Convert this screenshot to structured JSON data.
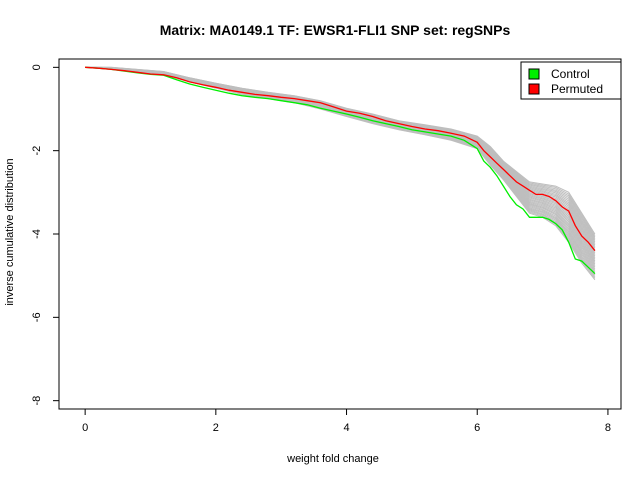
{
  "chart_data": {
    "type": "line",
    "title": "Matrix: MA0149.1 TF: EWSR1-FLI1 SNP set: regSNPs",
    "xlabel": "weight fold change",
    "ylabel": "inverse cumulative distribution",
    "xlim": [
      -0.4,
      8.2
    ],
    "ylim": [
      -8.2,
      0.2
    ],
    "x_ticks": [
      0,
      2,
      4,
      6,
      8
    ],
    "y_ticks": [
      0,
      -2,
      -4,
      -6,
      -8
    ],
    "x_tick_labels": [
      "0",
      "2",
      "4",
      "6",
      "8"
    ],
    "y_tick_labels": [
      "0",
      "-2",
      "-4",
      "-6",
      "-8"
    ],
    "legend": {
      "position": "top-right",
      "entries": [
        {
          "label": "Control",
          "color": "#00ee00"
        },
        {
          "label": "Permuted",
          "color": "#ff0000"
        }
      ]
    },
    "grid": false,
    "background_band": {
      "color": "#bebebe",
      "description_count": 30,
      "x": [
        0,
        0.4,
        0.8,
        1.2,
        1.6,
        2.0,
        2.4,
        2.8,
        3.2,
        3.6,
        4.0,
        4.4,
        4.8,
        5.2,
        5.6,
        6.0,
        6.2,
        6.4,
        6.6,
        6.8,
        7.0,
        7.2,
        7.4,
        7.6,
        7.8
      ],
      "upper": [
        0,
        0.0,
        -0.05,
        -0.1,
        -0.25,
        -0.38,
        -0.5,
        -0.6,
        -0.68,
        -0.8,
        -0.98,
        -1.12,
        -1.28,
        -1.38,
        -1.48,
        -1.65,
        -1.9,
        -2.25,
        -2.5,
        -2.75,
        -2.8,
        -2.85,
        -3.0,
        -3.5,
        -4.0
      ],
      "lower": [
        0,
        -0.05,
        -0.12,
        -0.18,
        -0.35,
        -0.5,
        -0.65,
        -0.75,
        -0.85,
        -1.0,
        -1.18,
        -1.35,
        -1.5,
        -1.62,
        -1.75,
        -1.95,
        -2.35,
        -2.7,
        -3.1,
        -3.5,
        -3.6,
        -3.8,
        -4.2,
        -4.7,
        -5.1
      ]
    },
    "series": [
      {
        "name": "Permuted",
        "color": "#ff0000",
        "x": [
          0,
          0.2,
          0.4,
          0.6,
          0.8,
          1.0,
          1.2,
          1.4,
          1.6,
          1.8,
          2.0,
          2.2,
          2.4,
          2.6,
          2.8,
          3.0,
          3.2,
          3.4,
          3.6,
          3.8,
          4.0,
          4.2,
          4.4,
          4.6,
          4.8,
          5.0,
          5.2,
          5.4,
          5.6,
          5.8,
          6.0,
          6.1,
          6.2,
          6.3,
          6.4,
          6.5,
          6.6,
          6.7,
          6.8,
          6.9,
          7.0,
          7.1,
          7.2,
          7.3,
          7.4,
          7.5,
          7.6,
          7.7,
          7.8
        ],
        "values": [
          0,
          -0.02,
          -0.05,
          -0.08,
          -0.12,
          -0.16,
          -0.18,
          -0.25,
          -0.35,
          -0.42,
          -0.48,
          -0.55,
          -0.6,
          -0.65,
          -0.68,
          -0.72,
          -0.75,
          -0.8,
          -0.85,
          -0.95,
          -1.05,
          -1.1,
          -1.18,
          -1.28,
          -1.35,
          -1.42,
          -1.48,
          -1.52,
          -1.58,
          -1.65,
          -1.8,
          -2.0,
          -2.15,
          -2.3,
          -2.45,
          -2.6,
          -2.75,
          -2.85,
          -2.95,
          -3.05,
          -3.05,
          -3.1,
          -3.2,
          -3.35,
          -3.45,
          -3.8,
          -4.05,
          -4.2,
          -4.4
        ]
      },
      {
        "name": "Control",
        "color": "#00ee00",
        "x": [
          0,
          0.2,
          0.4,
          0.6,
          0.8,
          1.0,
          1.2,
          1.4,
          1.6,
          1.8,
          2.0,
          2.2,
          2.4,
          2.6,
          2.8,
          3.0,
          3.2,
          3.4,
          3.6,
          3.8,
          4.0,
          4.2,
          4.4,
          4.6,
          4.8,
          5.0,
          5.2,
          5.4,
          5.6,
          5.8,
          6.0,
          6.1,
          6.2,
          6.3,
          6.4,
          6.5,
          6.6,
          6.7,
          6.8,
          6.9,
          7.0,
          7.1,
          7.2,
          7.3,
          7.4,
          7.5,
          7.6,
          7.7,
          7.8
        ],
        "values": [
          0,
          -0.02,
          -0.05,
          -0.09,
          -0.13,
          -0.17,
          -0.19,
          -0.3,
          -0.4,
          -0.48,
          -0.55,
          -0.62,
          -0.68,
          -0.72,
          -0.75,
          -0.8,
          -0.85,
          -0.9,
          -0.98,
          -1.05,
          -1.12,
          -1.2,
          -1.28,
          -1.35,
          -1.42,
          -1.5,
          -1.55,
          -1.6,
          -1.65,
          -1.75,
          -1.95,
          -2.25,
          -2.4,
          -2.6,
          -2.85,
          -3.1,
          -3.3,
          -3.4,
          -3.6,
          -3.6,
          -3.6,
          -3.65,
          -3.75,
          -3.9,
          -4.2,
          -4.6,
          -4.65,
          -4.8,
          -4.95
        ]
      }
    ]
  }
}
